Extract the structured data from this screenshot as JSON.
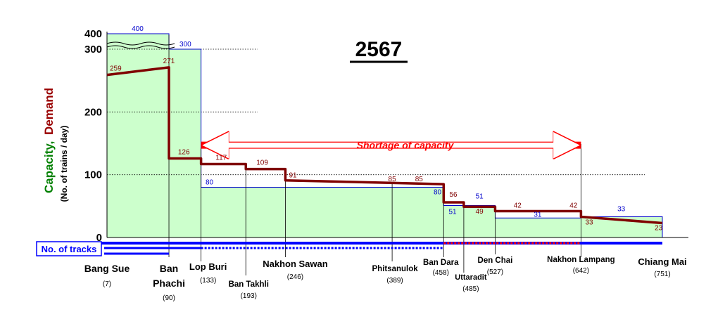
{
  "chart_data": {
    "type": "line",
    "title": "2567",
    "ylabel_capacity": "Capacity,",
    "ylabel_demand": "Demand",
    "ylabel_units": "(No. of trains / day)",
    "y_ticks": [
      "0",
      "100",
      "200",
      "300",
      "400"
    ],
    "ylim": [
      0,
      300
    ],
    "y_break": "between 300 and 400",
    "x_unit": "km",
    "xlim": [
      7,
      751
    ],
    "stations": [
      {
        "name": "Bang Sue",
        "km": 7,
        "km_label": "(7)"
      },
      {
        "name": "Ban",
        "name2": "Phachi",
        "km": 90,
        "km_label": "(90)"
      },
      {
        "name": "Lop Buri",
        "km": 133,
        "km_label": "(133)"
      },
      {
        "name": "Ban Takhli",
        "km": 193,
        "km_label": "(193)"
      },
      {
        "name": "Nakhon Sawan",
        "km": 246,
        "km_label": "(246)"
      },
      {
        "name": "Phitsanulok",
        "km": 389,
        "km_label": "(389)"
      },
      {
        "name": "Ban Dara",
        "km": 458,
        "km_label": "(458)"
      },
      {
        "name": "Uttaradit",
        "km": 485,
        "km_label": "(485)"
      },
      {
        "name": "Den Chai",
        "km": 527,
        "km_label": "(527)"
      },
      {
        "name": "Nakhon Lampang",
        "km": 642,
        "km_label": "(642)"
      },
      {
        "name": "Chiang Mai",
        "km": 751,
        "km_label": "(751)"
      }
    ],
    "capacity_segments": [
      {
        "from": 7,
        "to": 90,
        "value": 400,
        "label": "400"
      },
      {
        "from": 90,
        "to": 133,
        "value": 300,
        "label": "300"
      },
      {
        "from": 133,
        "to": 458,
        "value": 80,
        "label": "80"
      },
      {
        "from": 458,
        "to": 485,
        "value": 51,
        "label": "51"
      },
      {
        "from": 485,
        "to": 527,
        "value": 51,
        "label": "51"
      },
      {
        "from": 527,
        "to": 642,
        "value": 31,
        "label": "31"
      },
      {
        "from": 642,
        "to": 751,
        "value": 33,
        "label": "33"
      }
    ],
    "demand_segments": [
      {
        "from": 7,
        "to": 90,
        "start": 259,
        "end": 271
      },
      {
        "from": 90,
        "to": 133,
        "start": 126,
        "end": 126
      },
      {
        "from": 133,
        "to": 193,
        "start": 117,
        "end": 117
      },
      {
        "from": 193,
        "to": 246,
        "start": 109,
        "end": 109
      },
      {
        "from": 246,
        "to": 458,
        "start": 91,
        "end": 85
      },
      {
        "from": 458,
        "to": 485,
        "start": 56,
        "end": 56
      },
      {
        "from": 485,
        "to": 527,
        "start": 49,
        "end": 49
      },
      {
        "from": 527,
        "to": 642,
        "start": 42,
        "end": 42
      },
      {
        "from": 642,
        "to": 751,
        "start": 33,
        "end": 23
      }
    ],
    "demand_labels": [
      {
        "km": 7,
        "value": "259"
      },
      {
        "km": 90,
        "value": "271"
      },
      {
        "km": 110,
        "value": "126"
      },
      {
        "km": 160,
        "value": "117"
      },
      {
        "km": 215,
        "value": "109"
      },
      {
        "km": 256,
        "value": "91"
      },
      {
        "km": 389,
        "value": "85"
      },
      {
        "km": 425,
        "value": "85"
      },
      {
        "km": 471,
        "value": "56"
      },
      {
        "km": 506,
        "value": "49"
      },
      {
        "km": 557,
        "value": "42"
      },
      {
        "km": 632,
        "value": "42"
      },
      {
        "km": 653,
        "value": "33"
      },
      {
        "km": 746,
        "value": "23"
      }
    ],
    "annotation": {
      "text": "Shortage of capacity",
      "from": 133,
      "to": 642,
      "y": 147
    },
    "legend": "No. of tracks",
    "grid": false,
    "colors": {
      "capacity_fill": "#ccffcc",
      "capacity_line": "#0000cc",
      "demand_line": "#800000",
      "annotation": "#ff0000",
      "tracks": "#0000ff",
      "track_red": "#ff0000",
      "capacity_axis_label": "#008000",
      "demand_axis_label": "#990000"
    }
  }
}
